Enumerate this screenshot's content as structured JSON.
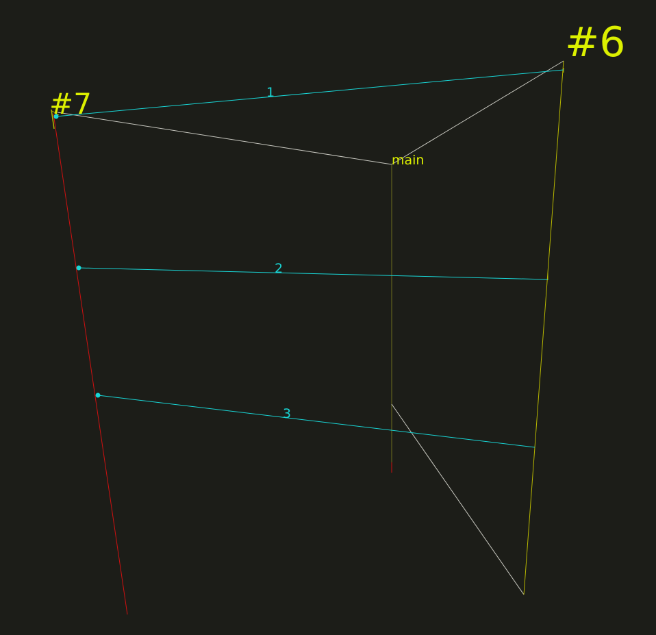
{
  "colors": {
    "background": "#1c1d18",
    "label_yellow": "#dcf000",
    "link_cyan": "#19d6d6",
    "tower_yellow": "#b8b800",
    "tower_red": "#d01010",
    "guide_white": "#c8c8c0",
    "mast_olive": "#6e6e1e"
  },
  "towers": [
    {
      "id": "tower-7",
      "label": "#7"
    },
    {
      "id": "tower-6",
      "label": "#6"
    }
  ],
  "center": {
    "label": "main"
  },
  "links": [
    {
      "id": "link-1",
      "label": "1"
    },
    {
      "id": "link-2",
      "label": "2"
    },
    {
      "id": "link-3",
      "label": "3"
    }
  ]
}
